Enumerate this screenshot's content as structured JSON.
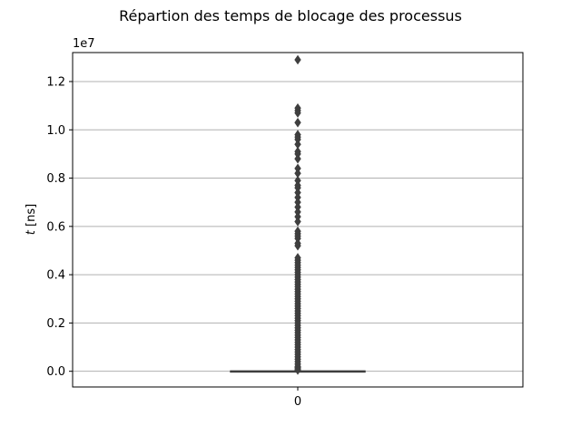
{
  "chart_data": {
    "type": "box",
    "title": "Répartion des temps de blocage des processus",
    "ylabel_var": "t",
    "ylabel_unit": " [ns]",
    "y_offset_label": "1e7",
    "categories": [
      "0"
    ],
    "ylim": [
      -0.065,
      1.32
    ],
    "yticks": [
      0.0,
      0.2,
      0.4,
      0.6,
      0.8,
      1.0,
      1.2
    ],
    "ytick_labels": [
      "0.0",
      "0.2",
      "0.4",
      "0.6",
      "0.8",
      "1.0",
      "1.2"
    ],
    "grid": "y",
    "box": {
      "q1": 0.0,
      "median": 0.0,
      "q3": 0.001,
      "whisker_low": 0.0,
      "whisker_high": 0.002
    },
    "outliers": [
      1.29,
      1.09,
      1.08,
      1.07,
      1.03,
      0.98,
      0.97,
      0.96,
      0.94,
      0.91,
      0.9,
      0.88,
      0.84,
      0.82,
      0.79,
      0.77,
      0.76,
      0.74,
      0.72,
      0.7,
      0.68,
      0.66,
      0.64,
      0.62,
      0.58,
      0.57,
      0.56,
      0.55,
      0.53,
      0.52,
      0.47,
      0.46,
      0.45,
      0.44,
      0.43,
      0.42,
      0.41,
      0.4,
      0.39,
      0.38,
      0.37,
      0.36,
      0.35,
      0.34,
      0.33,
      0.32,
      0.31,
      0.3,
      0.29,
      0.28,
      0.27,
      0.26,
      0.25,
      0.24,
      0.23,
      0.22,
      0.21,
      0.2,
      0.19,
      0.18,
      0.17,
      0.16,
      0.15,
      0.14,
      0.13,
      0.12,
      0.11,
      0.1,
      0.09,
      0.08,
      0.07,
      0.06,
      0.05,
      0.04,
      0.03,
      0.02,
      0.015,
      0.01,
      0.005
    ],
    "colors": {
      "box_line": "#3f3f3f",
      "grid": "#b0b0b0",
      "outlier": "#3f3f3f"
    }
  }
}
